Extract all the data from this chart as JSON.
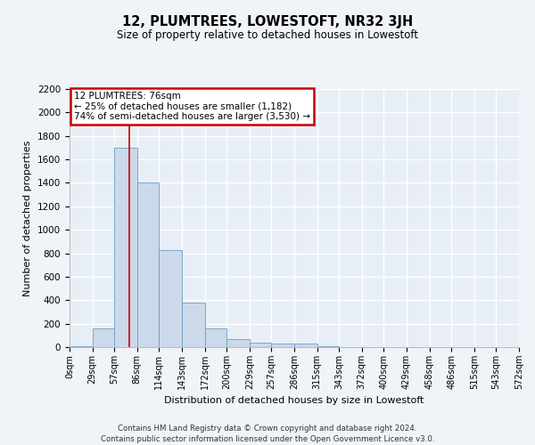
{
  "title": "12, PLUMTREES, LOWESTOFT, NR32 3JH",
  "subtitle": "Size of property relative to detached houses in Lowestoft",
  "xlabel": "Distribution of detached houses by size in Lowestoft",
  "ylabel": "Number of detached properties",
  "bar_color": "#ccd9ea",
  "bar_edge_color": "#6a9ec4",
  "background_color": "#e8eef5",
  "grid_color": "#ffffff",
  "fig_bg_color": "#f0f4f8",
  "annotation_box_color": "#cc0000",
  "vline_color": "#cc0000",
  "vline_x": 76,
  "annotation_title": "12 PLUMTREES: 76sqm",
  "annotation_line1": "← 25% of detached houses are smaller (1,182)",
  "annotation_line2": "74% of semi-detached houses are larger (3,530) →",
  "bin_edges": [
    0,
    29,
    57,
    86,
    114,
    143,
    172,
    200,
    229,
    257,
    286,
    315,
    343,
    372,
    400,
    429,
    458,
    486,
    515,
    543,
    572
  ],
  "bar_heights": [
    10,
    160,
    1700,
    1400,
    825,
    380,
    160,
    65,
    35,
    30,
    30,
    10,
    0,
    0,
    0,
    0,
    0,
    0,
    0,
    0
  ],
  "ylim": [
    0,
    2200
  ],
  "yticks": [
    0,
    200,
    400,
    600,
    800,
    1000,
    1200,
    1400,
    1600,
    1800,
    2000,
    2200
  ],
  "footer_line1": "Contains HM Land Registry data © Crown copyright and database right 2024.",
  "footer_line2": "Contains public sector information licensed under the Open Government Licence v3.0."
}
